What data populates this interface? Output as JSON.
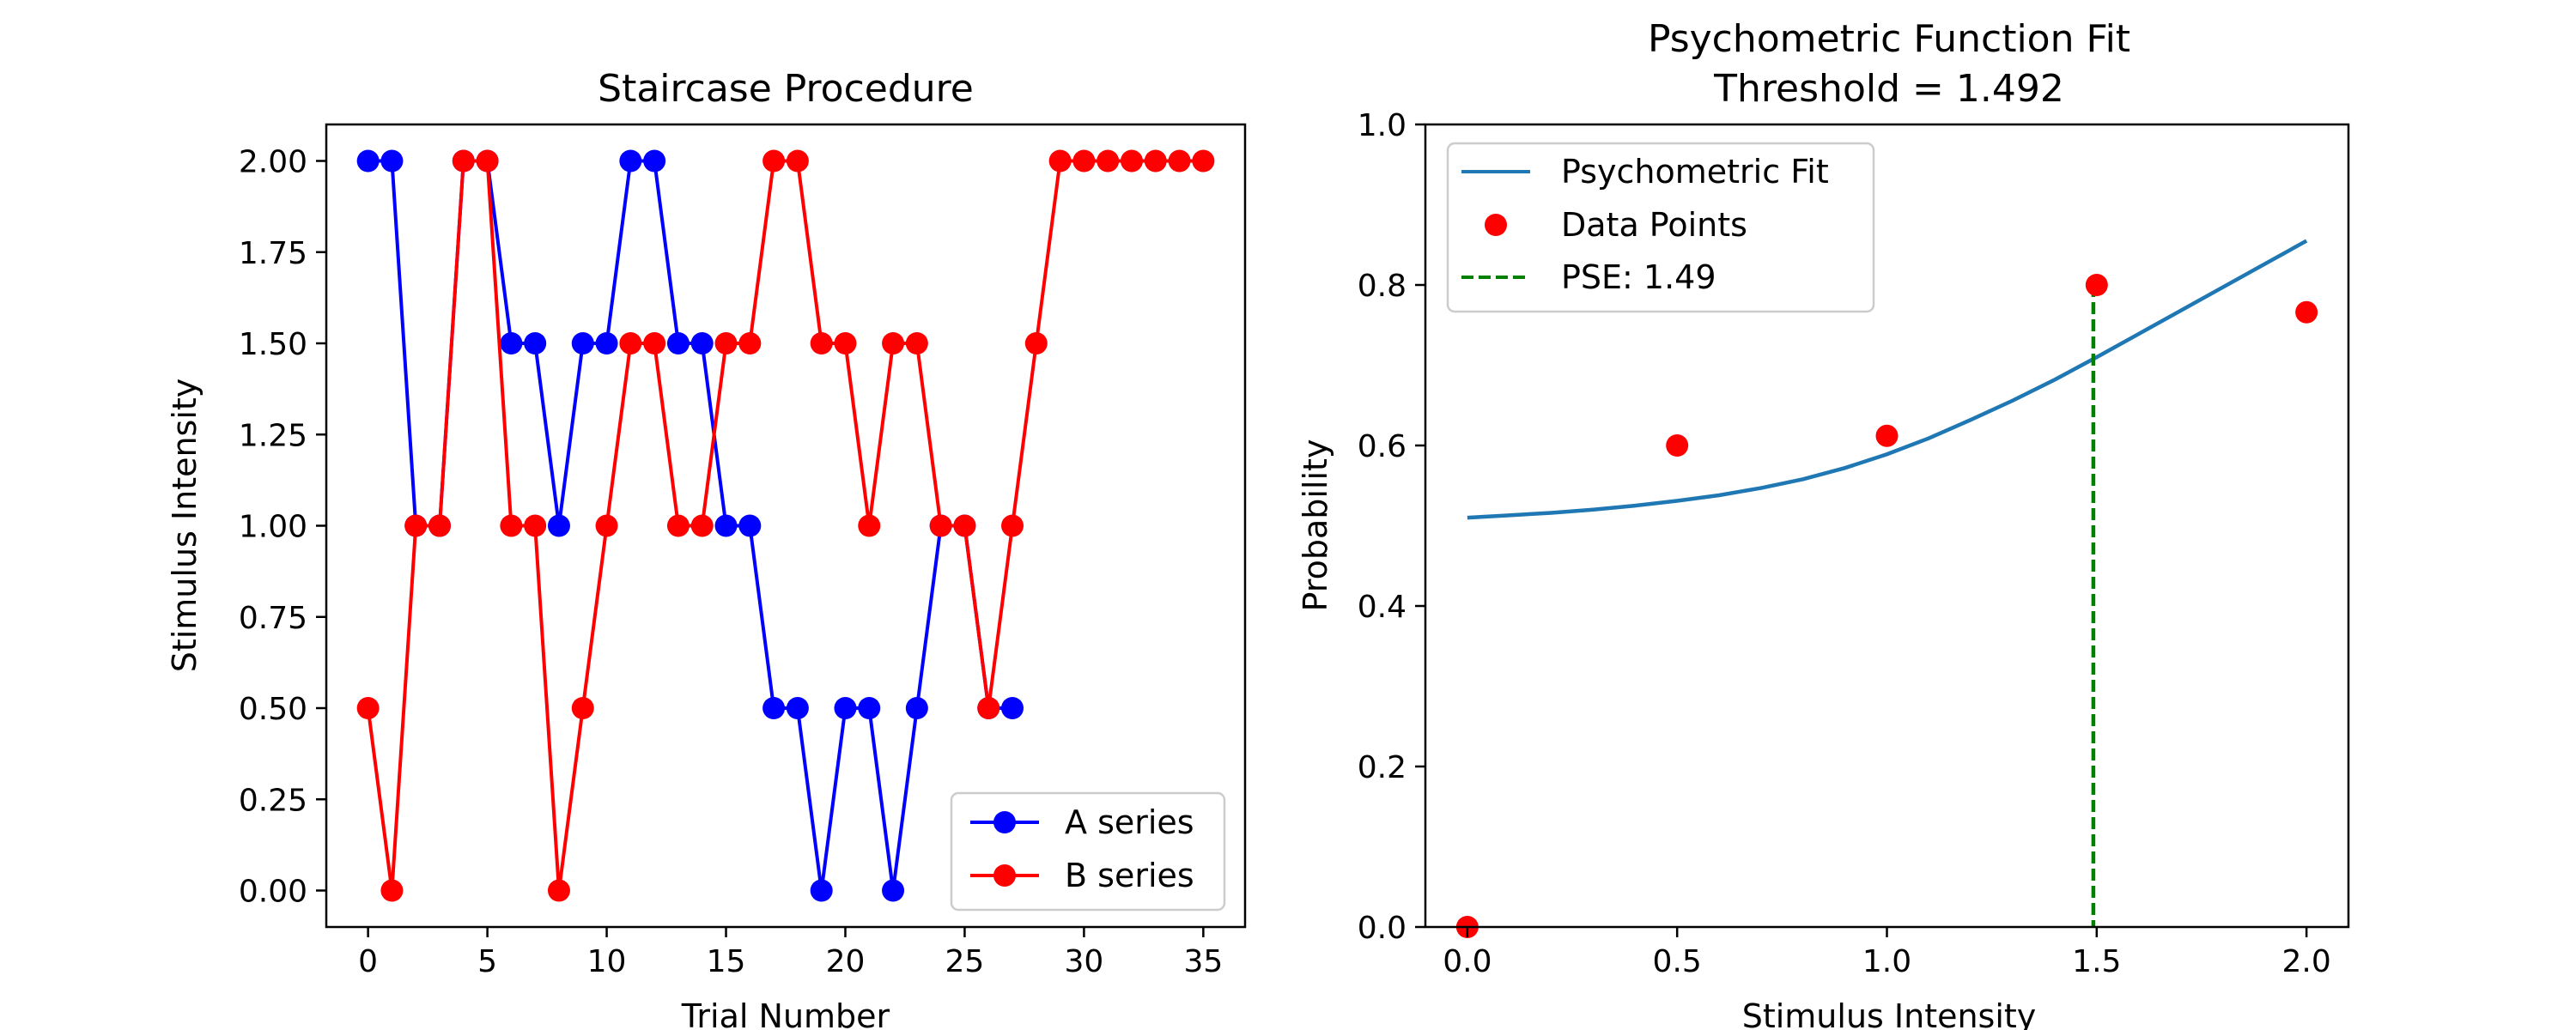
{
  "chart_data": [
    {
      "type": "line",
      "title": "Staircase Procedure",
      "xlabel": "Trial Number",
      "ylabel": "Stimulus Intensity",
      "xlim": [
        -1.75,
        36.75
      ],
      "ylim": [
        -0.1,
        2.1
      ],
      "xticks": [
        "0",
        "5",
        "10",
        "15",
        "20",
        "25",
        "30",
        "35"
      ],
      "yticks": [
        "0.00",
        "0.25",
        "0.50",
        "0.75",
        "1.00",
        "1.25",
        "1.50",
        "1.75",
        "2.00"
      ],
      "grid": false,
      "legend_position": "lower-right",
      "series": [
        {
          "name": "A series",
          "color": "#0000ff",
          "marker": "circle",
          "x": [
            0,
            1,
            2,
            3,
            4,
            5,
            6,
            7,
            8,
            9,
            10,
            11,
            12,
            13,
            14,
            15,
            16,
            17,
            18,
            19,
            20,
            21,
            22,
            23,
            24,
            25,
            26,
            27
          ],
          "y": [
            2.0,
            2.0,
            1.0,
            1.0,
            2.0,
            2.0,
            1.5,
            1.5,
            1.0,
            1.5,
            1.5,
            2.0,
            2.0,
            1.5,
            1.5,
            1.0,
            1.0,
            0.5,
            0.5,
            0.0,
            0.5,
            0.5,
            0.0,
            0.5,
            1.0,
            1.0,
            0.5,
            0.5
          ]
        },
        {
          "name": "B series",
          "color": "#ff0000",
          "marker": "circle",
          "x": [
            0,
            1,
            2,
            3,
            4,
            5,
            6,
            7,
            8,
            9,
            10,
            11,
            12,
            13,
            14,
            15,
            16,
            17,
            18,
            19,
            20,
            21,
            22,
            23,
            24,
            25,
            26,
            27,
            28,
            29,
            30,
            31,
            32,
            33,
            34,
            35
          ],
          "y": [
            0.5,
            0.0,
            1.0,
            1.0,
            2.0,
            2.0,
            1.0,
            1.0,
            0.0,
            0.5,
            1.0,
            1.5,
            1.5,
            1.0,
            1.0,
            1.5,
            1.5,
            2.0,
            2.0,
            1.5,
            1.5,
            1.0,
            1.5,
            1.5,
            1.0,
            1.0,
            0.5,
            1.0,
            1.5,
            2.0,
            2.0,
            2.0,
            2.0,
            2.0,
            2.0,
            2.0
          ]
        }
      ]
    },
    {
      "type": "line",
      "title": "Psychometric Function Fit",
      "subtitle": "Threshold = 1.492",
      "xlabel": "Stimulus Intensity",
      "ylabel": "Probability",
      "xlim": [
        -0.1,
        2.1
      ],
      "ylim": [
        0.0,
        1.0
      ],
      "xticks": [
        "0.0",
        "0.5",
        "1.0",
        "1.5",
        "2.0"
      ],
      "yticks": [
        "0.0",
        "0.2",
        "0.4",
        "0.6",
        "0.8",
        "1.0"
      ],
      "grid": false,
      "legend_position": "upper-left",
      "fit": {
        "name": "Psychometric Fit",
        "color": "#1f77b4",
        "x": [
          0.0,
          0.1,
          0.2,
          0.3,
          0.4,
          0.5,
          0.6,
          0.7,
          0.8,
          0.9,
          1.0,
          1.1,
          1.2,
          1.3,
          1.4,
          1.5,
          1.6,
          1.7,
          1.8,
          1.9,
          2.0
        ],
        "y": [
          0.51,
          0.513,
          0.516,
          0.52,
          0.525,
          0.531,
          0.538,
          0.547,
          0.558,
          0.572,
          0.589,
          0.609,
          0.632,
          0.656,
          0.682,
          0.71,
          0.739,
          0.768,
          0.797,
          0.826,
          0.855
        ]
      },
      "points": {
        "name": "Data Points",
        "color": "#ff0000",
        "x": [
          0.0,
          0.5,
          1.0,
          1.5,
          2.0
        ],
        "y": [
          0.0,
          0.6,
          0.612,
          0.8,
          0.766
        ]
      },
      "pse": {
        "name": "PSE: 1.49",
        "color": "#008000",
        "x": 1.492,
        "y_top": 0.8
      }
    }
  ]
}
